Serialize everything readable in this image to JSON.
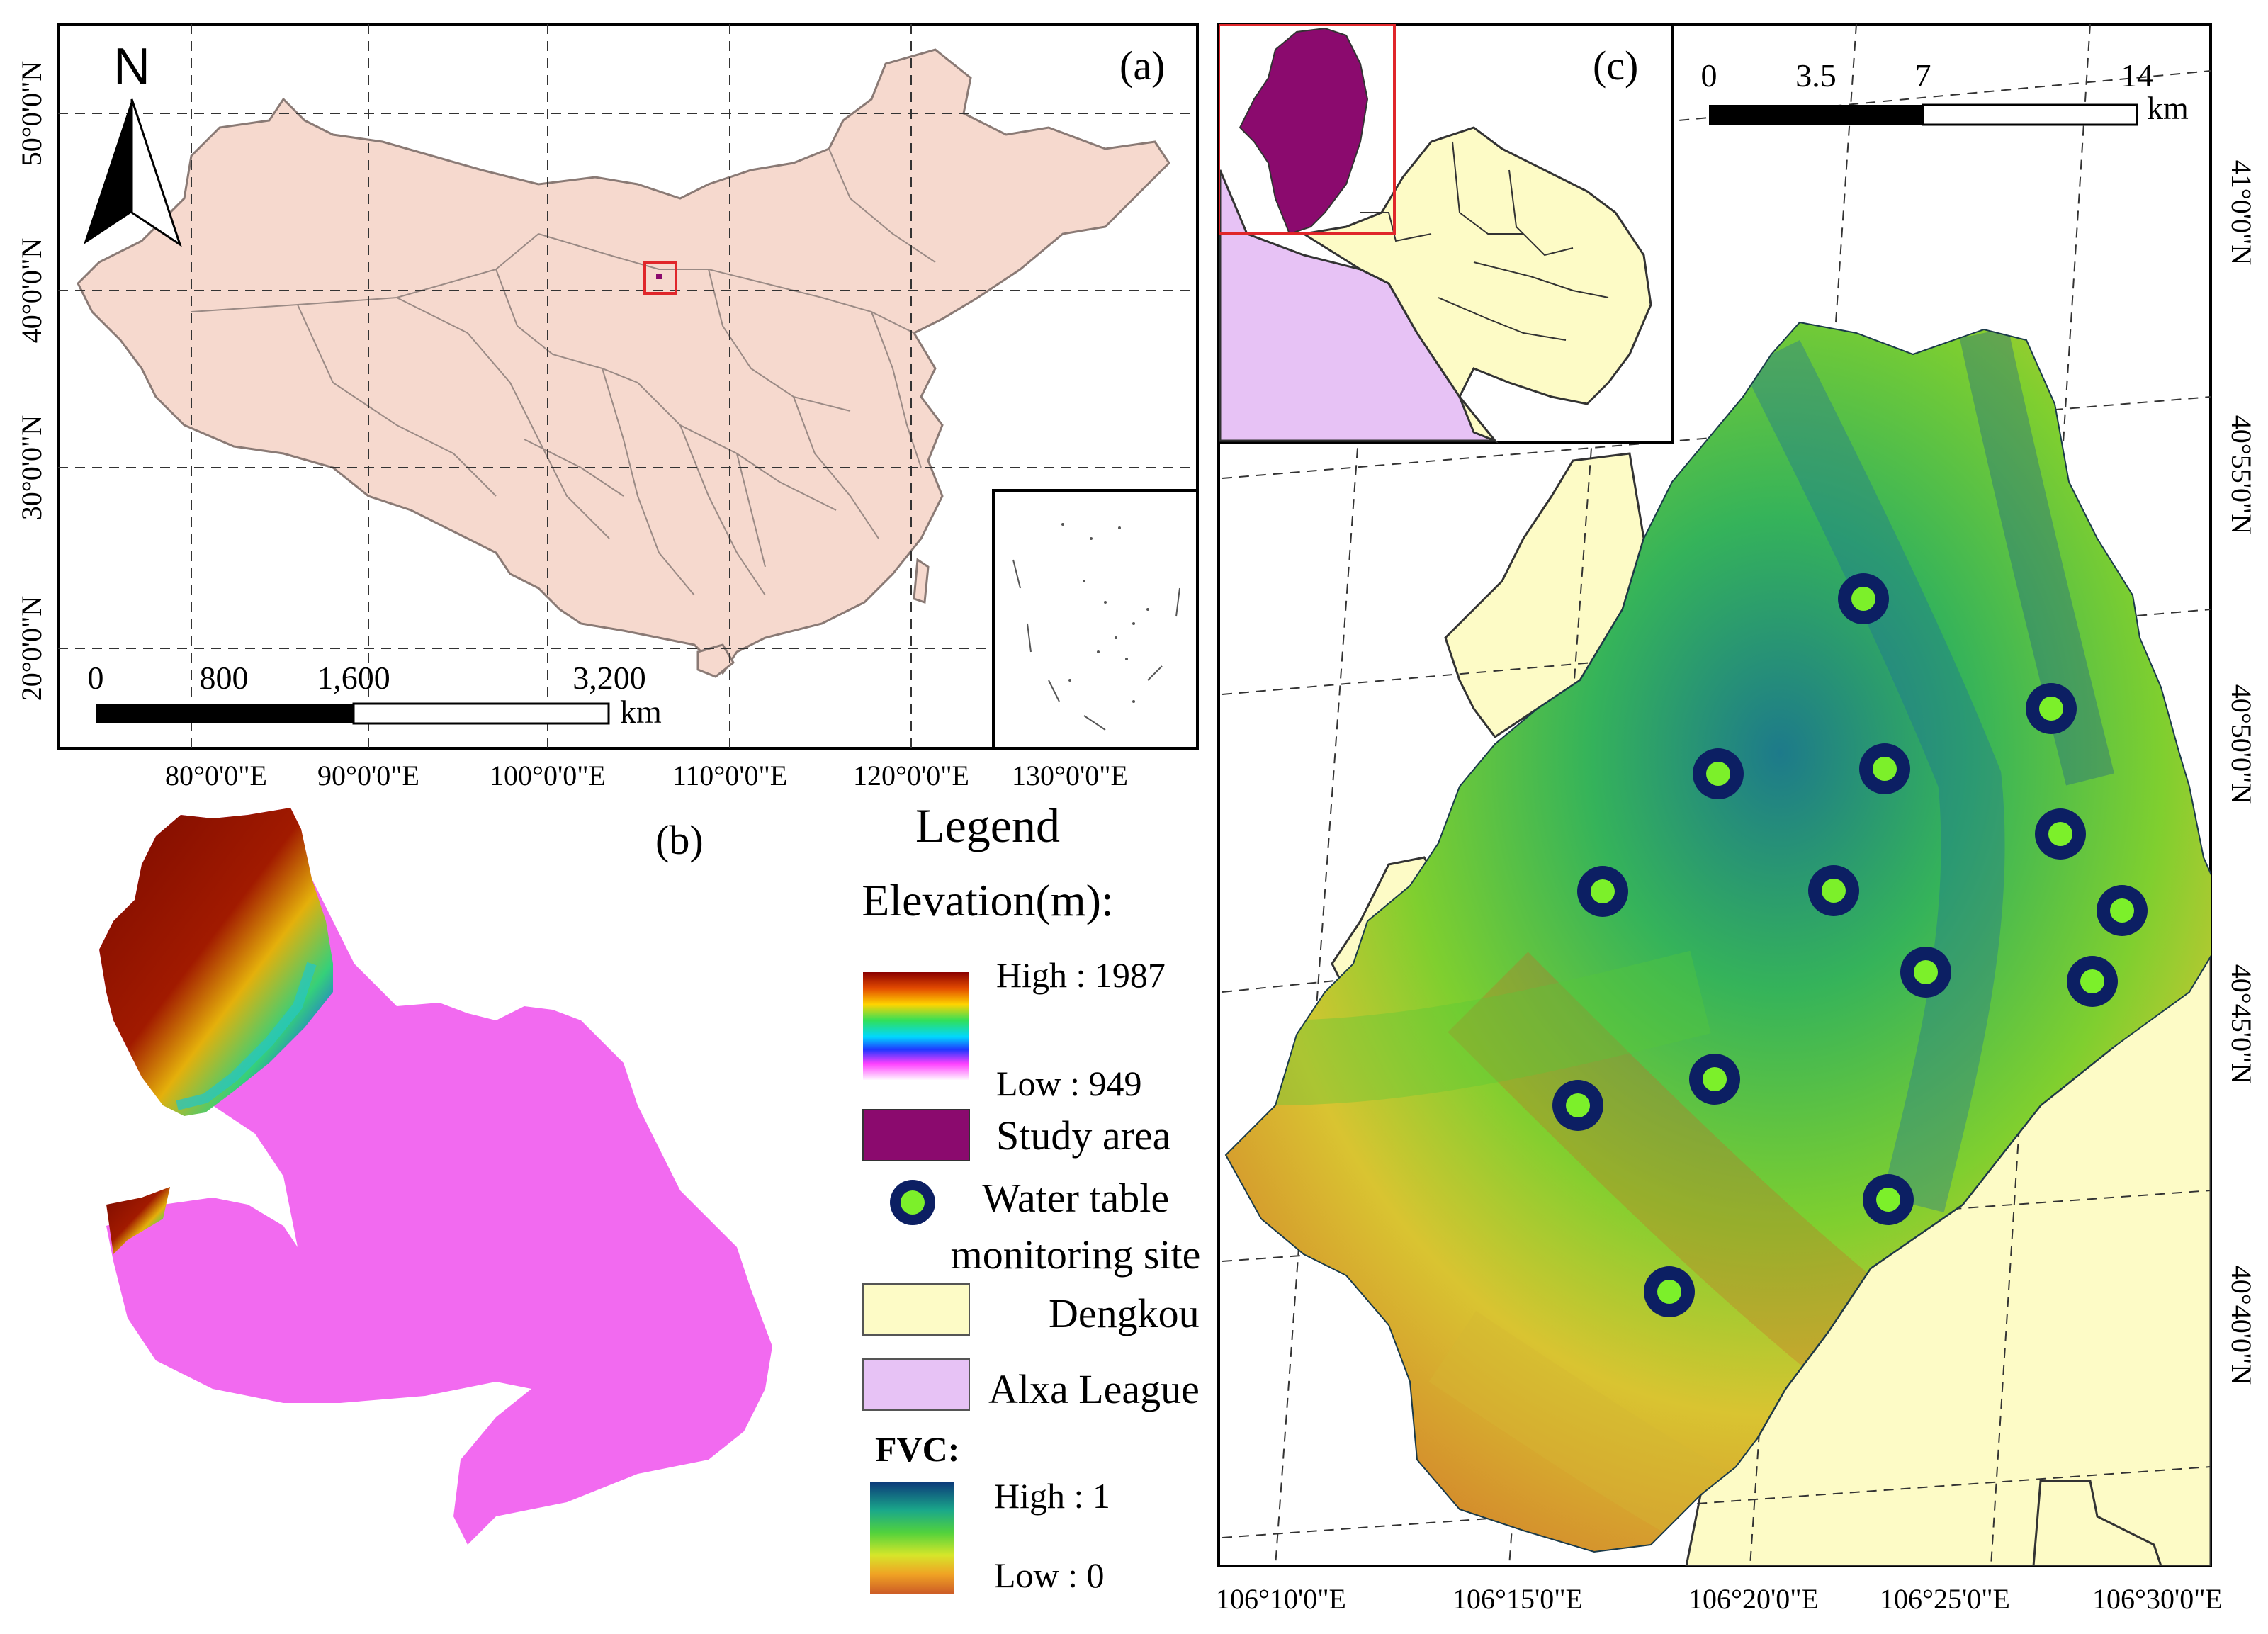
{
  "panel_a": {
    "label": "(a)",
    "north_label": "N",
    "scale": {
      "ticks": [
        "0",
        "800",
        "1,600",
        "3,200"
      ],
      "unit": "km"
    },
    "lat_labels": [
      "50°0'0\"N",
      "40°0'0\"N",
      "30°0'0\"N",
      "20°0'0\"N"
    ],
    "lon_labels": [
      "80°0'0\"E",
      "90°0'0\"E",
      "100°0'0\"E",
      "110°0'0\"E",
      "120°0'0\"E",
      "130°0'0\"E"
    ]
  },
  "panel_b": {
    "label": "(b)"
  },
  "panel_c": {
    "label": "(c)",
    "scale": {
      "ticks": [
        "0",
        "3.5",
        "7",
        "14"
      ],
      "unit": "km"
    },
    "lat_labels": [
      "41°0'0\"N",
      "40°55'0\"N",
      "40°50'0\"N",
      "40°45'0\"N",
      "40°40'0\"N"
    ],
    "lon_labels": [
      "106°10'0\"E",
      "106°15'0\"E",
      "106°20'0\"E",
      "106°25'0\"E",
      "106°30'0\"E"
    ],
    "monitoring_sites_count": 15
  },
  "legend": {
    "title": "Legend",
    "elevation_title": "Elevation(m):",
    "elevation_high": "High : 1987",
    "elevation_low": "Low : 949",
    "study_area": "Study area",
    "site_line1": "Water table",
    "site_line2": "monitoring site",
    "dengkou": "Dengkou",
    "alxa": "Alxa League",
    "fvc_title": "FVC:",
    "fvc_high": "High : 1",
    "fvc_low": "Low : 0"
  },
  "colors": {
    "china_fill": "#f6d9ce",
    "study_area": "#8b0a6e",
    "dengkou": "#fdfbc6",
    "alxa": "#e7c2f5",
    "site_ring": "#0c1f63",
    "site_center": "#7cf02a",
    "dem_magenta": "#f26af0",
    "dem_high": "#7a0a00"
  }
}
